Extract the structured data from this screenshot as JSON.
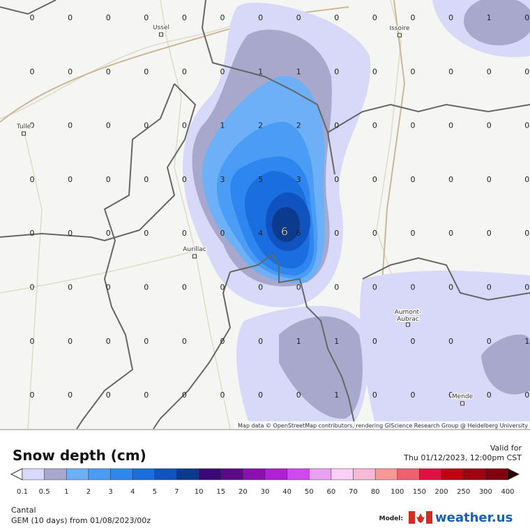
{
  "map": {
    "grid": [
      [
        0,
        0,
        0,
        0,
        0,
        0,
        0,
        0,
        0,
        0,
        0,
        0,
        1,
        0
      ],
      [
        0,
        0,
        0,
        0,
        0,
        0,
        1,
        1,
        0,
        0,
        0,
        0,
        0,
        0
      ],
      [
        0,
        0,
        0,
        0,
        0,
        1,
        2,
        2,
        0,
        0,
        0,
        0,
        0,
        0
      ],
      [
        0,
        0,
        0,
        0,
        0,
        3,
        5,
        3,
        0,
        0,
        0,
        0,
        0,
        0
      ],
      [
        0,
        0,
        0,
        0,
        0,
        0,
        4,
        6,
        0,
        0,
        0,
        0,
        0,
        0
      ],
      [
        0,
        0,
        0,
        0,
        0,
        0,
        0,
        0,
        0,
        0,
        0,
        0,
        0,
        0
      ],
      [
        0,
        0,
        0,
        0,
        0,
        0,
        0,
        1,
        1,
        0,
        0,
        0,
        0,
        1
      ],
      [
        0,
        0,
        0,
        0,
        0,
        0,
        0,
        0,
        1,
        0,
        0,
        0,
        0,
        0
      ]
    ],
    "max_label": 6,
    "cities": [
      "Ussel",
      "Issoire",
      "Tulle",
      "Aurillac",
      "Aumont-Aubrac",
      "Mende"
    ],
    "attribution": "Map data © OpenStreetMap contributors, rendering GIScience Research Group @ Heidelberg University"
  },
  "header": {
    "title": "Snow depth (cm)",
    "valid_label": "Valid for",
    "valid_time": "Thu 01/12/2023, 12:00pm CST"
  },
  "legend": {
    "labels": [
      0.1,
      0.5,
      1,
      2,
      3,
      4,
      5,
      7,
      10,
      15,
      20,
      30,
      40,
      50,
      60,
      70,
      80,
      100,
      150,
      200,
      250,
      300,
      400
    ],
    "colors": [
      "#d8d8f8",
      "#a8a8cc",
      "#6db0f8",
      "#4a9cf5",
      "#2e86f0",
      "#1a6ee0",
      "#1052c0",
      "#0c3a8c",
      "#3a0a78",
      "#5a0a88",
      "#8a10b0",
      "#b020d8",
      "#d048f0",
      "#e8a0f0",
      "#f8d0f8",
      "#f8b8d8",
      "#f89898",
      "#f06070",
      "#e01040",
      "#c00010",
      "#a00010",
      "#800010"
    ]
  },
  "footer": {
    "region": "Cantal",
    "model_run": "GEM (10 days) from 01/08/2023/00z",
    "model_label": "Model:",
    "brand": "weather.us"
  }
}
